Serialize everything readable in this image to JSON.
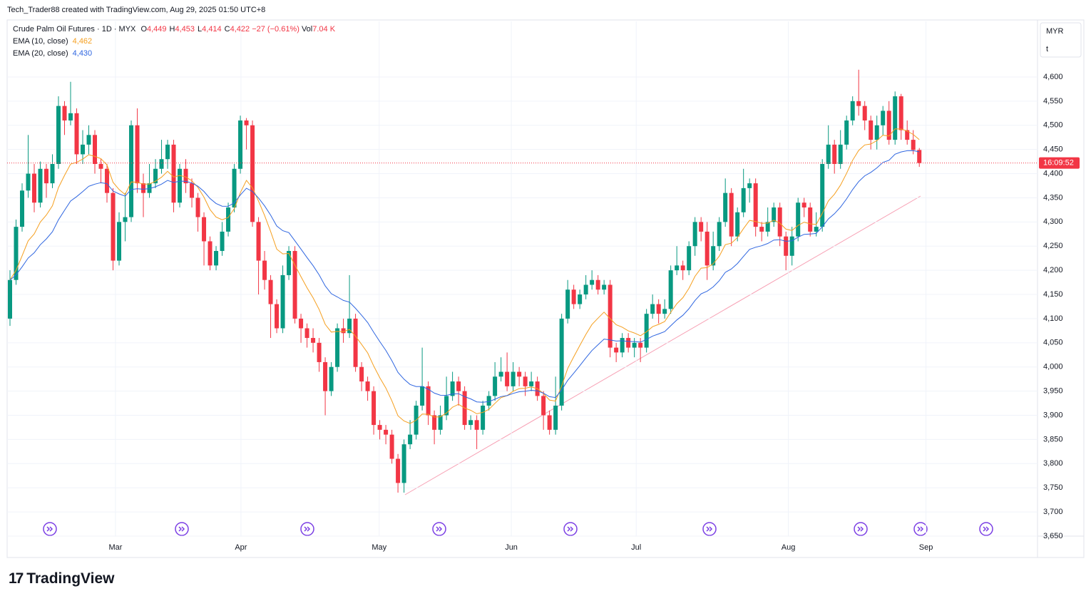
{
  "header": "Tech_Trader88 created with TradingView.com, Aug 29, 2025 01:50 UTC+8",
  "legend": {
    "title": "Crude Palm Oil Futures · 1D · MYX",
    "items": [
      {
        "key": "O",
        "value": "4,449"
      },
      {
        "key": "H",
        "value": "4,453"
      },
      {
        "key": "L",
        "value": "4,414"
      },
      {
        "key": "C",
        "value": "4,422"
      }
    ],
    "change": "−27 (−0.61%)",
    "vol_key": "Vol",
    "vol": "7.04 K",
    "indicators": [
      {
        "name": "EMA (10, close)",
        "value": "4,462",
        "color": "#f59f1f",
        "period": 10
      },
      {
        "name": "EMA (20, close)",
        "value": "4,430",
        "color": "#2f66e0",
        "period": 20
      }
    ]
  },
  "scale_buttons": [
    "MYR",
    "t"
  ],
  "countdown": "16:09:52",
  "logo": "TradingView",
  "chart_data": {
    "type": "candlestick",
    "up_color": "#089981",
    "down_color": "#f23645",
    "xlim": [
      -0.47,
      169.5
    ],
    "ylim": [
      3650,
      4715
    ],
    "xticks": [
      {
        "value": 17.4,
        "label": "Mar"
      },
      {
        "value": 38.1,
        "label": "Apr"
      },
      {
        "value": 60.9,
        "label": "May"
      },
      {
        "value": 82.7,
        "label": "Jun"
      },
      {
        "value": 103.3,
        "label": "Jul"
      },
      {
        "value": 128.4,
        "label": "Aug"
      },
      {
        "value": 151.1,
        "label": "Sep"
      }
    ],
    "yticks": [
      {
        "value": 3650,
        "label": "3,650"
      },
      {
        "value": 3700,
        "label": "3,700"
      },
      {
        "value": 3750,
        "label": "3,750"
      },
      {
        "value": 3800,
        "label": "3,800"
      },
      {
        "value": 3850,
        "label": "3,850"
      },
      {
        "value": 3900,
        "label": "3,900"
      },
      {
        "value": 3950,
        "label": "3,950"
      },
      {
        "value": 4000,
        "label": "4,000"
      },
      {
        "value": 4050,
        "label": "4,050"
      },
      {
        "value": 4100,
        "label": "4,100"
      },
      {
        "value": 4150,
        "label": "4,150"
      },
      {
        "value": 4200,
        "label": "4,200"
      },
      {
        "value": 4250,
        "label": "4,250"
      },
      {
        "value": 4300,
        "label": "4,300"
      },
      {
        "value": 4350,
        "label": "4,350"
      },
      {
        "value": 4400,
        "label": "4,400"
      },
      {
        "value": 4450,
        "label": "4,450"
      },
      {
        "value": 4500,
        "label": "4,500"
      },
      {
        "value": 4550,
        "label": "4,550"
      },
      {
        "value": 4600,
        "label": "4,600"
      }
    ],
    "grid": true,
    "ohlc": {
      "open": [
        4100,
        4180,
        4290,
        4365,
        4400,
        4340,
        4410,
        4380,
        4420,
        4540,
        4510,
        4525,
        4440,
        4460,
        4480,
        4420,
        4410,
        4360,
        4220,
        4300,
        4310,
        4500,
        4380,
        4360,
        4380,
        4410,
        4430,
        4460,
        4340,
        4410,
        4380,
        4350,
        4310,
        4260,
        4210,
        4240,
        4280,
        4330,
        4410,
        4510,
        4500,
        4300,
        4220,
        4180,
        4130,
        4080,
        4190,
        4240,
        4100,
        4080,
        4060,
        4050,
        4010,
        3950,
        4000,
        4080,
        4070,
        4100,
        4000,
        3970,
        3950,
        3880,
        3870,
        3860,
        3810,
        3760,
        3840,
        3860,
        3920,
        3960,
        3900,
        3870,
        3900,
        3940,
        3970,
        3950,
        3880,
        3890,
        3870,
        3920,
        3940,
        3980,
        3990,
        3960,
        3990,
        3980,
        3960,
        3970,
        3940,
        3900,
        3870,
        3920,
        4100,
        4160,
        4130,
        4150,
        4170,
        4180,
        4160,
        4170,
        4040,
        4030,
        4060,
        4040,
        4050,
        4040,
        4110,
        4130,
        4110,
        4120,
        4200,
        4210,
        4200,
        4250,
        4300,
        4280,
        4210,
        4250,
        4300,
        4360,
        4270,
        4320,
        4370,
        4380,
        4290,
        4280,
        4300,
        4330,
        4270,
        4230,
        4270,
        4340,
        4330,
        4280,
        4290,
        4420,
        4460,
        4420,
        4460,
        4510,
        4550,
        4540,
        4510,
        4470,
        4500,
        4530,
        4470,
        4560,
        4490,
        4470,
        4449
      ],
      "high": [
        4200,
        4305,
        4380,
        4480,
        4420,
        4425,
        4420,
        4440,
        4560,
        4550,
        4590,
        4535,
        4490,
        4500,
        4490,
        4430,
        4420,
        4370,
        4320,
        4360,
        4510,
        4535,
        4400,
        4420,
        4430,
        4470,
        4470,
        4470,
        4420,
        4430,
        4390,
        4360,
        4320,
        4270,
        4250,
        4300,
        4340,
        4420,
        4520,
        4515,
        4510,
        4310,
        4240,
        4190,
        4140,
        4210,
        4250,
        4250,
        4110,
        4090,
        4080,
        4060,
        4020,
        4010,
        4090,
        4100,
        4190,
        4110,
        4010,
        3980,
        3960,
        3890,
        3880,
        3870,
        3820,
        3850,
        3890,
        3930,
        4040,
        3970,
        3910,
        3920,
        3980,
        3990,
        3980,
        3960,
        3900,
        3900,
        3930,
        3950,
        4010,
        4020,
        4030,
        4010,
        4000,
        3990,
        3990,
        3980,
        3950,
        3910,
        3980,
        4110,
        4180,
        4170,
        4160,
        4190,
        4200,
        4190,
        4180,
        4180,
        4050,
        4070,
        4070,
        4060,
        4060,
        4120,
        4150,
        4140,
        4140,
        4210,
        4250,
        4220,
        4260,
        4310,
        4310,
        4300,
        4280,
        4310,
        4390,
        4370,
        4330,
        4410,
        4390,
        4390,
        4300,
        4330,
        4340,
        4340,
        4280,
        4290,
        4350,
        4350,
        4340,
        4320,
        4430,
        4500,
        4470,
        4490,
        4520,
        4560,
        4615,
        4550,
        4520,
        4520,
        4540,
        4550,
        4570,
        4565,
        4510,
        4490,
        4453
      ],
      "low": [
        4085,
        4170,
        4280,
        4350,
        4320,
        4330,
        4350,
        4370,
        4410,
        4480,
        4500,
        4420,
        4420,
        4440,
        4400,
        4380,
        4340,
        4200,
        4210,
        4260,
        4300,
        4360,
        4310,
        4350,
        4370,
        4400,
        4410,
        4320,
        4330,
        4360,
        4330,
        4280,
        4210,
        4200,
        4200,
        4230,
        4270,
        4320,
        4400,
        4450,
        4290,
        4150,
        4160,
        4060,
        4070,
        4070,
        4180,
        4090,
        4050,
        4040,
        4030,
        3990,
        3900,
        3940,
        3990,
        4050,
        4060,
        3990,
        3950,
        3930,
        3860,
        3850,
        3840,
        3800,
        3740,
        3740,
        3830,
        3850,
        3910,
        3880,
        3840,
        3860,
        3890,
        3930,
        3920,
        3870,
        3870,
        3830,
        3860,
        3910,
        3930,
        3970,
        3950,
        3950,
        3960,
        3940,
        3950,
        3930,
        3870,
        3860,
        3860,
        3910,
        4090,
        4120,
        4120,
        4140,
        4160,
        4150,
        4150,
        4020,
        4010,
        4020,
        4030,
        4020,
        4010,
        4030,
        4100,
        4090,
        4100,
        4110,
        4190,
        4180,
        4190,
        4230,
        4260,
        4180,
        4200,
        4240,
        4290,
        4250,
        4260,
        4310,
        4340,
        4270,
        4260,
        4270,
        4290,
        4250,
        4200,
        4210,
        4260,
        4310,
        4270,
        4270,
        4280,
        4410,
        4400,
        4410,
        4450,
        4500,
        4520,
        4490,
        4450,
        4450,
        4480,
        4460,
        4460,
        4470,
        4460,
        4440,
        4414
      ],
      "close": [
        4180,
        4290,
        4365,
        4400,
        4340,
        4410,
        4380,
        4420,
        4540,
        4510,
        4525,
        4440,
        4460,
        4480,
        4420,
        4410,
        4360,
        4220,
        4300,
        4310,
        4500,
        4380,
        4360,
        4380,
        4410,
        4430,
        4460,
        4340,
        4410,
        4380,
        4350,
        4310,
        4260,
        4210,
        4240,
        4280,
        4330,
        4410,
        4510,
        4500,
        4300,
        4220,
        4180,
        4130,
        4080,
        4190,
        4240,
        4100,
        4080,
        4060,
        4050,
        4010,
        3950,
        4000,
        4080,
        4070,
        4100,
        4000,
        3970,
        3950,
        3880,
        3870,
        3860,
        3810,
        3760,
        3840,
        3860,
        3920,
        3960,
        3900,
        3870,
        3900,
        3940,
        3970,
        3950,
        3880,
        3890,
        3870,
        3920,
        3940,
        3980,
        3990,
        3960,
        3990,
        3980,
        3960,
        3970,
        3940,
        3900,
        3870,
        3920,
        4100,
        4160,
        4130,
        4150,
        4170,
        4180,
        4160,
        4170,
        4040,
        4030,
        4060,
        4040,
        4050,
        4040,
        4110,
        4130,
        4110,
        4120,
        4200,
        4210,
        4200,
        4250,
        4300,
        4280,
        4210,
        4250,
        4300,
        4360,
        4270,
        4320,
        4370,
        4380,
        4290,
        4280,
        4300,
        4330,
        4270,
        4230,
        4270,
        4340,
        4330,
        4280,
        4290,
        4420,
        4460,
        4420,
        4460,
        4510,
        4550,
        4540,
        4510,
        4470,
        4500,
        4530,
        4470,
        4560,
        4490,
        4470,
        4449,
        4422
      ]
    }
  }
}
